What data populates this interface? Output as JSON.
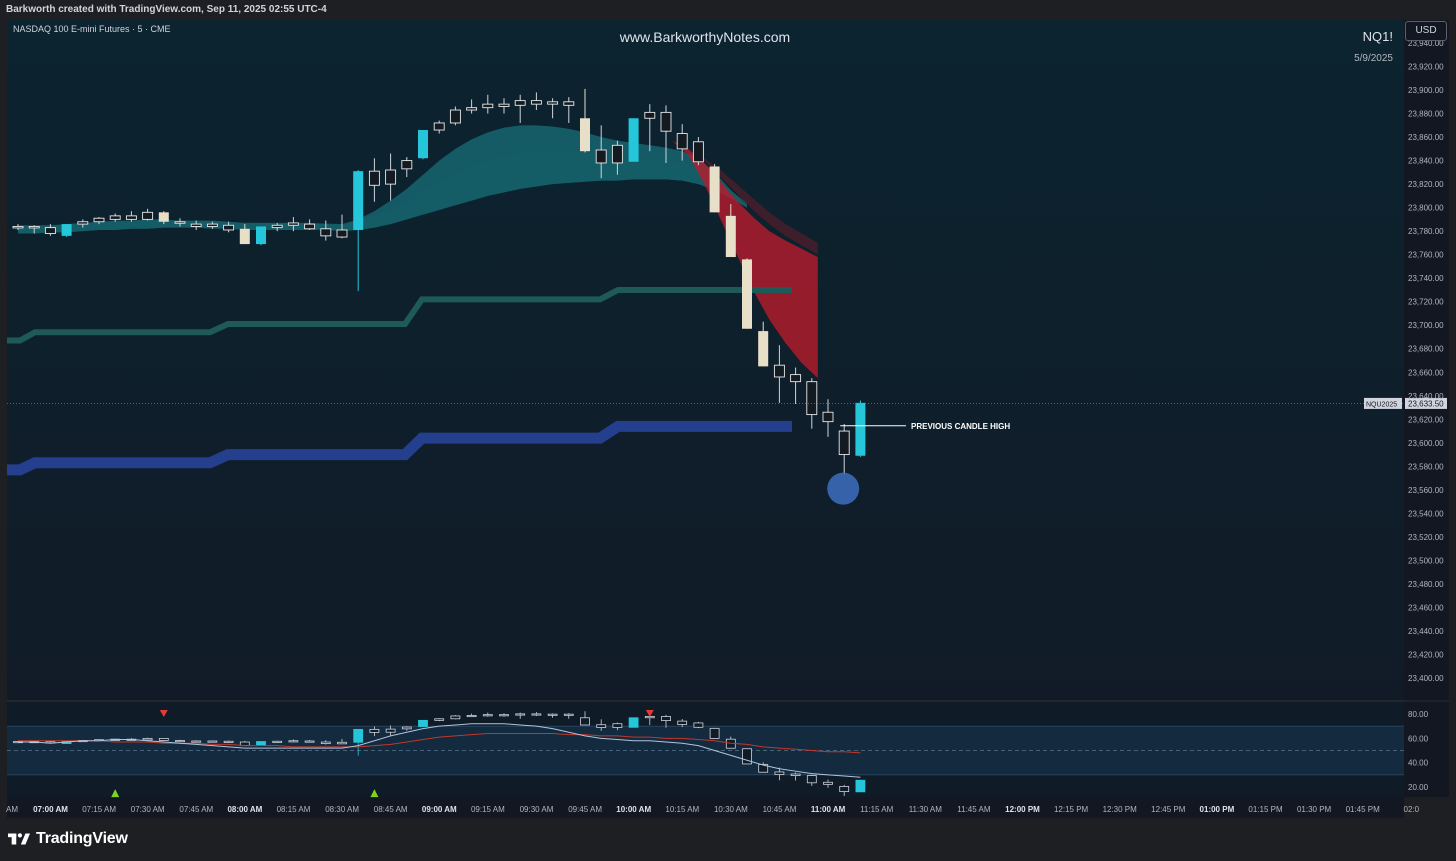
{
  "header": {
    "attribution": "Barkworth created with TradingView.com, Sep 11, 2025 02:55 UTC-4",
    "instrument": "NASDAQ 100 E-mini Futures · 5 · CME",
    "watermark": "www.BarkworthyNotes.com",
    "symbol": "NQ1!",
    "date": "5/9/2025",
    "currency_button": "USD"
  },
  "footer": {
    "brand": "TradingView",
    "logo_icon": "tradingview-logo-icon"
  },
  "colors": {
    "background_top": "#0b2430",
    "background_bottom": "#0f1b26",
    "bull_candle": "#26c6da",
    "bear_candle": "#e8dfc8",
    "neutral_candle": "#131a22",
    "teal_ribbon": "#1b8a96",
    "red_ribbon": "#b71c2c",
    "green_line": "#1d5a58",
    "blue_line": "#253f8f",
    "marker_circle": "#3d6fbf",
    "up_arrow": "#7ed321",
    "down_arrow": "#e53935",
    "osc_fast": "#b0c4de",
    "osc_slow": "#c0392b"
  },
  "chart_data": [
    {
      "type": "candlestick",
      "ylim": [
        23380,
        23950
      ],
      "y_ticks": [
        "23,940.00",
        "23,920.00",
        "23,900.00",
        "23,880.00",
        "23,860.00",
        "23,840.00",
        "23,820.00",
        "23,800.00",
        "23,780.00",
        "23,760.00",
        "23,740.00",
        "23,720.00",
        "23,700.00",
        "23,680.00",
        "23,660.00",
        "23,640.00",
        "23,620.00",
        "23,600.00",
        "23,580.00",
        "23,560.00",
        "23,540.00",
        "23,520.00",
        "23,500.00",
        "23,480.00",
        "23,460.00",
        "23,440.00",
        "23,420.00",
        "23,400.00"
      ],
      "x_ticks": [
        "AM",
        "07:00 AM",
        "07:15 AM",
        "07:30 AM",
        "07:45 AM",
        "08:00 AM",
        "08:15 AM",
        "08:30 AM",
        "08:45 AM",
        "09:00 AM",
        "09:15 AM",
        "09:30 AM",
        "09:45 AM",
        "10:00 AM",
        "10:15 AM",
        "10:30 AM",
        "10:45 AM",
        "11:00 AM",
        "11:15 AM",
        "11:30 AM",
        "11:45 AM",
        "12:00 PM",
        "12:15 PM",
        "12:30 PM",
        "12:45 PM",
        "01:00 PM",
        "01:15 PM",
        "01:30 PM",
        "01:45 PM",
        "02:0"
      ],
      "x_ticks_bold": [
        "07:00 AM",
        "08:00 AM",
        "09:00 AM",
        "10:00 AM",
        "11:00 AM",
        "12:00 PM",
        "01:00 PM"
      ],
      "candles": [
        {
          "o": 23784,
          "h": 23786,
          "l": 23781,
          "c": 23783,
          "s": "n"
        },
        {
          "o": 23783,
          "h": 23785,
          "l": 23778,
          "c": 23784,
          "s": "n"
        },
        {
          "o": 23783,
          "h": 23786,
          "l": 23776,
          "c": 23778,
          "s": "n"
        },
        {
          "o": 23776,
          "h": 23786,
          "l": 23775,
          "c": 23786,
          "s": "u"
        },
        {
          "o": 23786,
          "h": 23790,
          "l": 23783,
          "c": 23788,
          "s": "n"
        },
        {
          "o": 23788,
          "h": 23792,
          "l": 23786,
          "c": 23791,
          "s": "n"
        },
        {
          "o": 23790,
          "h": 23795,
          "l": 23788,
          "c": 23793,
          "s": "n"
        },
        {
          "o": 23793,
          "h": 23797,
          "l": 23788,
          "c": 23790,
          "s": "n"
        },
        {
          "o": 23790,
          "h": 23799,
          "l": 23789,
          "c": 23796,
          "s": "n"
        },
        {
          "o": 23796,
          "h": 23797,
          "l": 23786,
          "c": 23788,
          "s": "d"
        },
        {
          "o": 23788,
          "h": 23791,
          "l": 23784,
          "c": 23787,
          "s": "n"
        },
        {
          "o": 23786,
          "h": 23789,
          "l": 23781,
          "c": 23784,
          "s": "n"
        },
        {
          "o": 23784,
          "h": 23788,
          "l": 23782,
          "c": 23786,
          "s": "n"
        },
        {
          "o": 23785,
          "h": 23788,
          "l": 23779,
          "c": 23781,
          "s": "n"
        },
        {
          "o": 23782,
          "h": 23786,
          "l": 23769,
          "c": 23769,
          "s": "d"
        },
        {
          "o": 23769,
          "h": 23784,
          "l": 23768,
          "c": 23784,
          "s": "u"
        },
        {
          "o": 23783,
          "h": 23787,
          "l": 23780,
          "c": 23785,
          "s": "n"
        },
        {
          "o": 23785,
          "h": 23792,
          "l": 23780,
          "c": 23787,
          "s": "n"
        },
        {
          "o": 23786,
          "h": 23790,
          "l": 23781,
          "c": 23782,
          "s": "n"
        },
        {
          "o": 23782,
          "h": 23789,
          "l": 23772,
          "c": 23776,
          "s": "n"
        },
        {
          "o": 23775,
          "h": 23794,
          "l": 23774,
          "c": 23781,
          "s": "n"
        },
        {
          "o": 23781,
          "h": 23832,
          "l": 23729,
          "c": 23831,
          "s": "u"
        },
        {
          "o": 23819,
          "h": 23842,
          "l": 23805,
          "c": 23831,
          "s": "n"
        },
        {
          "o": 23820,
          "h": 23846,
          "l": 23806,
          "c": 23832,
          "s": "n"
        },
        {
          "o": 23833,
          "h": 23843,
          "l": 23826,
          "c": 23840,
          "s": "n"
        },
        {
          "o": 23842,
          "h": 23866,
          "l": 23841,
          "c": 23866,
          "s": "u"
        },
        {
          "o": 23866,
          "h": 23874,
          "l": 23863,
          "c": 23872,
          "s": "n"
        },
        {
          "o": 23872,
          "h": 23886,
          "l": 23870,
          "c": 23883,
          "s": "n"
        },
        {
          "o": 23883,
          "h": 23892,
          "l": 23880,
          "c": 23885,
          "s": "n"
        },
        {
          "o": 23885,
          "h": 23896,
          "l": 23880,
          "c": 23888,
          "s": "n"
        },
        {
          "o": 23886,
          "h": 23893,
          "l": 23880,
          "c": 23888,
          "s": "n"
        },
        {
          "o": 23887,
          "h": 23896,
          "l": 23872,
          "c": 23891,
          "s": "n"
        },
        {
          "o": 23891,
          "h": 23898,
          "l": 23883,
          "c": 23888,
          "s": "n"
        },
        {
          "o": 23888,
          "h": 23893,
          "l": 23876,
          "c": 23890,
          "s": "n"
        },
        {
          "o": 23890,
          "h": 23894,
          "l": 23872,
          "c": 23887,
          "s": "n"
        },
        {
          "o": 23876,
          "h": 23901,
          "l": 23847,
          "c": 23848,
          "s": "d"
        },
        {
          "o": 23849,
          "h": 23870,
          "l": 23825,
          "c": 23838,
          "s": "n"
        },
        {
          "o": 23838,
          "h": 23857,
          "l": 23828,
          "c": 23853,
          "s": "n"
        },
        {
          "o": 23839,
          "h": 23876,
          "l": 23839,
          "c": 23876,
          "s": "u"
        },
        {
          "o": 23876,
          "h": 23888,
          "l": 23848,
          "c": 23881,
          "s": "n"
        },
        {
          "o": 23881,
          "h": 23887,
          "l": 23838,
          "c": 23865,
          "s": "n"
        },
        {
          "o": 23863,
          "h": 23871,
          "l": 23840,
          "c": 23850,
          "s": "n"
        },
        {
          "o": 23856,
          "h": 23860,
          "l": 23836,
          "c": 23839,
          "s": "n"
        },
        {
          "o": 23835,
          "h": 23837,
          "l": 23796,
          "c": 23796,
          "s": "d"
        },
        {
          "o": 23793,
          "h": 23803,
          "l": 23758,
          "c": 23758,
          "s": "d"
        },
        {
          "o": 23756,
          "h": 23757,
          "l": 23697,
          "c": 23697,
          "s": "d"
        },
        {
          "o": 23695,
          "h": 23703,
          "l": 23665,
          "c": 23665,
          "s": "d"
        },
        {
          "o": 23666,
          "h": 23683,
          "l": 23634,
          "c": 23656,
          "s": "n"
        },
        {
          "o": 23652,
          "h": 23664,
          "l": 23633,
          "c": 23658,
          "s": "n"
        },
        {
          "o": 23624,
          "h": 23655,
          "l": 23612,
          "c": 23652,
          "s": "n"
        },
        {
          "o": 23618,
          "h": 23637,
          "l": 23605,
          "c": 23626,
          "s": "n"
        },
        {
          "o": 23590,
          "h": 23616,
          "l": 23573,
          "c": 23610,
          "s": "n"
        },
        {
          "o": 23589,
          "h": 23636,
          "l": 23588,
          "c": 23634,
          "s": "u"
        }
      ],
      "last_price": {
        "label": "NQU2025",
        "value": "23,633.50",
        "level": 23633.5
      },
      "annotation": {
        "text": "PREVIOUS CANDLE HIGH",
        "level": 23614.5
      }
    },
    {
      "type": "line",
      "ylim": [
        10,
        90
      ],
      "y_ticks": [
        "80.00",
        "60.00",
        "40.00",
        "20.00"
      ],
      "upper_band": 70,
      "mid_level": 50,
      "lower_band": 30
    }
  ]
}
